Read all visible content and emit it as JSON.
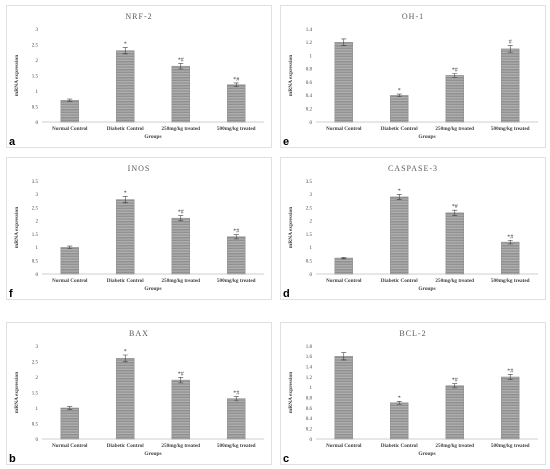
{
  "chart_data": [
    {
      "type": "bar",
      "title": "NRF-2",
      "panel_label": "a",
      "xlabel": "Groups",
      "ylabel": "mRNA expression",
      "categories": [
        "Normal Control",
        "Diabetic Control",
        "250mg/kg treated",
        "500mg/kg treated"
      ],
      "values": [
        0.7,
        2.3,
        1.8,
        1.2
      ],
      "errors": [
        0.04,
        0.1,
        0.09,
        0.06
      ],
      "annotations": [
        "",
        "*",
        "*#",
        "*#"
      ],
      "ylim": [
        0,
        3
      ],
      "yticks": [
        "0",
        "0.5",
        "1",
        "1.5",
        "2",
        "2.5",
        "3"
      ]
    },
    {
      "type": "bar",
      "title": "OH-1",
      "panel_label": "e",
      "xlabel": "Groups",
      "ylabel": "mRNA expression",
      "categories": [
        "Normal Control",
        "Diabetic Control",
        "250mg/kg treated",
        "500mg/kg treated"
      ],
      "values": [
        1.2,
        0.4,
        0.7,
        1.1
      ],
      "errors": [
        0.05,
        0.02,
        0.03,
        0.05
      ],
      "annotations": [
        "",
        "*",
        "*#",
        "#"
      ],
      "ylim": [
        0,
        1.4
      ],
      "yticks": [
        "0",
        "0.2",
        "0.4",
        "0.6",
        "0.8",
        "1",
        "1.2",
        "1.4"
      ]
    },
    {
      "type": "bar",
      "title": "INOS",
      "panel_label": "f",
      "xlabel": "Groups",
      "ylabel": "mRNA expression",
      "categories": [
        "Normal Control",
        "Diabetic Control",
        "250mg/kg treated",
        "500mg/kg treated"
      ],
      "values": [
        1.0,
        2.8,
        2.1,
        1.4
      ],
      "errors": [
        0.05,
        0.12,
        0.1,
        0.08
      ],
      "annotations": [
        "",
        "*",
        "*#",
        "*#"
      ],
      "ylim": [
        0,
        3.5
      ],
      "yticks": [
        "0",
        "0.5",
        "1",
        "1.5",
        "2",
        "2.5",
        "3",
        "3.5"
      ]
    },
    {
      "type": "bar",
      "title": "CASPASE-3",
      "panel_label": "d",
      "xlabel": "Groups",
      "ylabel": "mRNA expression",
      "categories": [
        "Normal Control",
        "Diabetic Control",
        "250mg/kg treated",
        "500mg/kg treated"
      ],
      "values": [
        0.6,
        2.9,
        2.3,
        1.2
      ],
      "errors": [
        0.03,
        0.1,
        0.1,
        0.07
      ],
      "annotations": [
        "",
        "*",
        "*#",
        "*#"
      ],
      "ylim": [
        0,
        3.5
      ],
      "yticks": [
        "0",
        "0.5",
        "1",
        "1.5",
        "2",
        "2.5",
        "3",
        "3.5"
      ]
    },
    {
      "type": "bar",
      "title": "BAX",
      "panel_label": "b",
      "xlabel": "Groups",
      "ylabel": "mRNA expression",
      "categories": [
        "Normal Control",
        "Diabetic Control",
        "250mg/kg treated",
        "500mg/kg treated"
      ],
      "values": [
        1.0,
        2.6,
        1.9,
        1.3
      ],
      "errors": [
        0.05,
        0.11,
        0.09,
        0.07
      ],
      "annotations": [
        "",
        "*",
        "*#",
        "*#"
      ],
      "ylim": [
        0,
        3
      ],
      "yticks": [
        "0",
        "0.5",
        "1",
        "1.5",
        "2",
        "2.5",
        "3"
      ]
    },
    {
      "type": "bar",
      "title": "BCL-2",
      "panel_label": "c",
      "xlabel": "Groups",
      "ylabel": "mRNA expression",
      "categories": [
        "Normal Control",
        "Diabetic Control",
        "250mg/kg treated",
        "500mg/kg treated"
      ],
      "values": [
        1.6,
        0.7,
        1.03,
        1.2
      ],
      "errors": [
        0.07,
        0.03,
        0.04,
        0.05
      ],
      "annotations": [
        "",
        "*",
        "*#",
        "*#"
      ],
      "ylim": [
        0,
        1.8
      ],
      "yticks": [
        "0",
        "0.2",
        "0.4",
        "0.6",
        "0.8",
        "1",
        "1.2",
        "1.4",
        "1.6",
        "1.8"
      ]
    }
  ],
  "colors": {
    "bar_fill": "#a6a6a6",
    "bar_stripe": "#7f7f7f",
    "frame": "#d9d9d9",
    "text": "#404040"
  }
}
